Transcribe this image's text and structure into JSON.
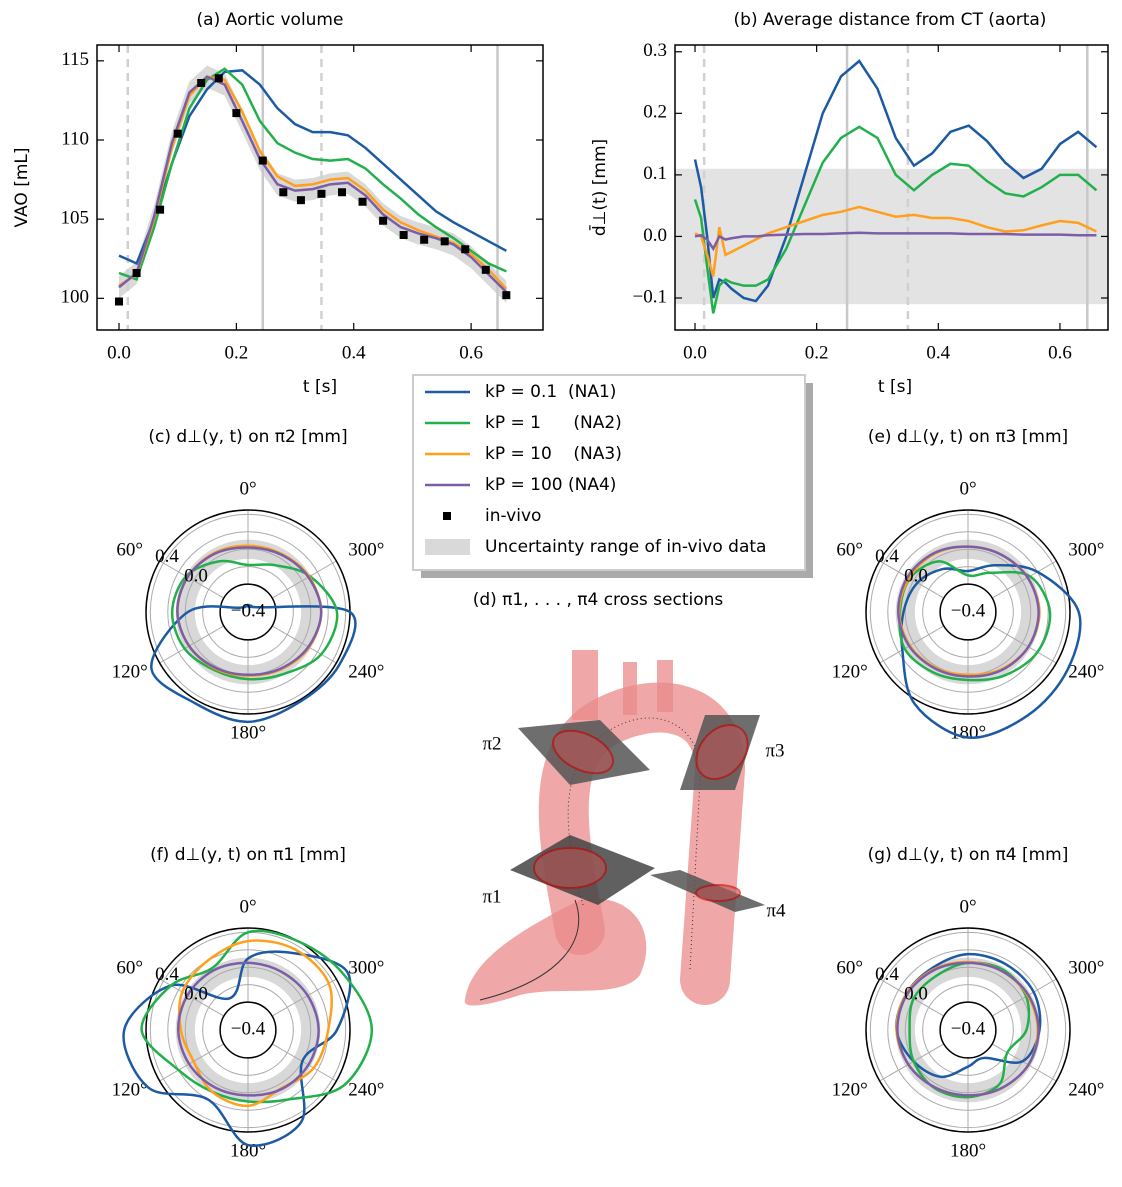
{
  "chart_data": [
    {
      "type": "line",
      "title": "(a) Aortic volume",
      "xlabel": "t [s]",
      "ylabel": "VAO [mL]",
      "xlim": [
        -0.0375,
        0.7225
      ],
      "ylim": [
        98,
        116
      ],
      "xticks": [
        {
          "value": 0,
          "label": "0.0"
        },
        0.2,
        0.4,
        0.6
      ],
      "yticks": [
        100,
        105,
        110,
        115
      ],
      "vlines": [
        {
          "x": 0.015,
          "style": "dashed"
        },
        {
          "x": 0.245,
          "style": "solid"
        },
        {
          "x": 0.345,
          "style": "dashed"
        },
        {
          "x": 0.645,
          "style": "solid"
        }
      ],
      "x": [
        0,
        0.03,
        0.06,
        0.09,
        0.12,
        0.15,
        0.18,
        0.21,
        0.24,
        0.27,
        0.3,
        0.33,
        0.36,
        0.39,
        0.42,
        0.45,
        0.48,
        0.51,
        0.54,
        0.57,
        0.6,
        0.63,
        0.66
      ],
      "series": [
        {
          "name": "kP = 0.1  (NA1)",
          "color": "#1c5ba3",
          "values": [
            102.7,
            102.2,
            105,
            108.5,
            111.5,
            113.2,
            114.3,
            114.4,
            113.5,
            112,
            111,
            110.5,
            110.5,
            110.3,
            109.5,
            108.5,
            107.5,
            106.5,
            105.5,
            104.8,
            104.2,
            103.6,
            103.0
          ]
        },
        {
          "name": "kP = 1      (NA2)",
          "color": "#21b04b",
          "values": [
            101.6,
            101.2,
            104.5,
            108.5,
            112,
            113.8,
            114.5,
            113.5,
            111.2,
            109.8,
            109.2,
            108.8,
            108.7,
            108.8,
            108.2,
            107.2,
            106.3,
            105.3,
            104.5,
            103.8,
            103.0,
            102.2,
            101.7
          ]
        },
        {
          "name": "kP = 10    (NA3)",
          "color": "#ff9f1c",
          "values": [
            100.8,
            101.5,
            105,
            109.5,
            112.8,
            114,
            113.8,
            111.8,
            109.3,
            107.7,
            107.1,
            107.2,
            107.5,
            107.6,
            106.8,
            105.6,
            104.8,
            104.3,
            103.9,
            103.5,
            102.8,
            101.8,
            100.6
          ]
        },
        {
          "name": "kP = 100 (NA4)",
          "color": "#7b5ea7",
          "values": [
            100.7,
            101.6,
            105.2,
            109.8,
            113,
            114,
            113.5,
            111.2,
            108.8,
            107.2,
            106.8,
            106.9,
            107.2,
            107.3,
            106.5,
            105.3,
            104.5,
            104.1,
            103.8,
            103.4,
            102.6,
            101.5,
            100.4
          ]
        }
      ],
      "band": {
        "name": "Uncertainty range of in-vivo data",
        "color": "#d9d9d9",
        "low": [
          100.0,
          100.9,
          104.5,
          109.1,
          112.3,
          113.3,
          112.8,
          110.5,
          108.1,
          106.5,
          106.1,
          106.2,
          106.5,
          106.6,
          105.8,
          104.6,
          103.8,
          103.4,
          103.1,
          102.7,
          101.9,
          100.8,
          99.7
        ],
        "high": [
          101.4,
          102.3,
          105.9,
          110.5,
          113.7,
          114.7,
          114.2,
          111.9,
          109.5,
          107.9,
          107.5,
          107.6,
          107.9,
          108.0,
          107.2,
          106.0,
          105.2,
          104.8,
          104.5,
          104.1,
          103.3,
          102.2,
          101.1
        ]
      },
      "scatter": {
        "name": "in-vivo",
        "color": "#000000",
        "x": [
          0,
          0.03,
          0.07,
          0.1,
          0.14,
          0.17,
          0.2,
          0.245,
          0.28,
          0.31,
          0.345,
          0.38,
          0.415,
          0.45,
          0.485,
          0.52,
          0.555,
          0.59,
          0.625,
          0.66
        ],
        "values": [
          99.8,
          101.6,
          105.6,
          110.4,
          113.6,
          113.9,
          111.7,
          108.7,
          106.7,
          106.2,
          106.6,
          106.7,
          106.1,
          104.9,
          104.0,
          103.7,
          103.6,
          103.1,
          101.8,
          100.2
        ]
      }
    },
    {
      "type": "line",
      "title": "(b) Average distance from CT (aorta)",
      "xlabel": "t [s]",
      "ylabel": "d̄⊥(t) [mm]",
      "xlim": [
        -0.0329,
        0.679
      ],
      "ylim": [
        -0.152,
        0.311
      ],
      "xticks": [
        {
          "value": 0,
          "label": "0.0"
        },
        0.2,
        0.4,
        0.6
      ],
      "yticks": [
        {
          "value": -0.1,
          "label": "−0.1"
        },
        {
          "value": 0,
          "label": "0.0"
        },
        0.1,
        0.2,
        0.3
      ],
      "vlines": [
        {
          "x": 0.015,
          "style": "dashed"
        },
        {
          "x": 0.25,
          "style": "solid"
        },
        {
          "x": 0.35,
          "style": "dashed"
        },
        {
          "x": 0.645,
          "style": "solid"
        }
      ],
      "hband": [
        -0.11,
        0.11
      ],
      "hband_color": "#e3e3e3",
      "x": [
        0,
        0.01,
        0.02,
        0.03,
        0.04,
        0.05,
        0.06,
        0.08,
        0.1,
        0.12,
        0.15,
        0.18,
        0.21,
        0.24,
        0.27,
        0.3,
        0.33,
        0.36,
        0.39,
        0.42,
        0.45,
        0.48,
        0.51,
        0.54,
        0.57,
        0.6,
        0.63,
        0.66
      ],
      "series": [
        {
          "color": "#1c5ba3",
          "values": [
            0.125,
            0.08,
            0.0,
            -0.1,
            -0.07,
            -0.075,
            -0.085,
            -0.1,
            -0.105,
            -0.08,
            0.0,
            0.1,
            0.2,
            0.26,
            0.285,
            0.24,
            0.16,
            0.115,
            0.135,
            0.17,
            0.18,
            0.155,
            0.12,
            0.095,
            0.11,
            0.15,
            0.17,
            0.145
          ]
        },
        {
          "color": "#21b04b",
          "values": [
            0.06,
            0.03,
            -0.05,
            -0.125,
            -0.08,
            -0.07,
            -0.075,
            -0.08,
            -0.08,
            -0.07,
            -0.02,
            0.05,
            0.12,
            0.16,
            0.178,
            0.16,
            0.1,
            0.075,
            0.1,
            0.118,
            0.115,
            0.09,
            0.07,
            0.065,
            0.08,
            0.1,
            0.1,
            0.075
          ]
        },
        {
          "color": "#ff9f1c",
          "values": [
            0.005,
            0,
            -0.03,
            -0.065,
            0.015,
            -0.03,
            -0.025,
            -0.015,
            -0.005,
            0.005,
            0.015,
            0.025,
            0.035,
            0.04,
            0.048,
            0.04,
            0.032,
            0.035,
            0.03,
            0.03,
            0.025,
            0.015,
            0.008,
            0.01,
            0.018,
            0.025,
            0.022,
            0.008
          ]
        },
        {
          "color": "#7b5ea7",
          "values": [
            0,
            0.002,
            -0.005,
            -0.02,
            0,
            -0.005,
            -0.003,
            0,
            0,
            0.002,
            0.003,
            0.004,
            0.004,
            0.005,
            0.006,
            0.005,
            0.005,
            0.005,
            0.005,
            0.005,
            0.004,
            0.004,
            0.004,
            0.003,
            0.003,
            0.003,
            0.002,
            0.002
          ]
        }
      ]
    },
    {
      "type": "polar",
      "title": "(c)  d⊥(y, t) on π2 [mm]",
      "rlim": [
        -0.4,
        0.45
      ],
      "rorigin": -0.72,
      "rticks": [
        {
          "value": -0.4,
          "label": "−0.4"
        },
        {
          "value": 0,
          "label": "0.0"
        },
        0.4
      ],
      "rgrid": [
        -0.2,
        0.2
      ],
      "band": [
        -0.11,
        0.11
      ],
      "thetaticks": [
        {
          "value": 0,
          "label": "0°"
        },
        {
          "value": 60,
          "label": "60°"
        },
        {
          "value": 120,
          "label": "120°"
        },
        {
          "value": 180,
          "label": "180°"
        },
        {
          "value": 240,
          "label": "240°"
        },
        {
          "value": 300,
          "label": "300°"
        }
      ],
      "theta": [
        0,
        30,
        60,
        90,
        120,
        150,
        180,
        210,
        240,
        270,
        300,
        330
      ],
      "series": [
        {
          "color": "#1c5ba3",
          "values": [
            -0.64,
            -0.64,
            -0.62,
            -0.03,
            0.56,
            0.49,
            0.54,
            0.47,
            0.49,
            0.45,
            -0.61,
            -0.64
          ]
        },
        {
          "color": "#21b04b",
          "values": [
            -0.18,
            -0.05,
            0.1,
            0.15,
            0.12,
            0.05,
            0.05,
            0.1,
            0.25,
            0.3,
            0.1,
            -0.1
          ]
        },
        {
          "color": "#ff9f1c",
          "values": [
            0.04,
            0.06,
            0.08,
            0.09,
            0.06,
            0.03,
            0.01,
            0.04,
            0.09,
            0.12,
            0.09,
            0.05
          ]
        },
        {
          "color": "#7b5ea7",
          "values": [
            0.02,
            0.05,
            0.08,
            0.09,
            0.06,
            0.02,
            0.0,
            0.03,
            0.08,
            0.12,
            0.08,
            0.04
          ]
        }
      ]
    },
    {
      "type": "polar",
      "title": "(e)  d⊥(y, t) on π3 [mm]",
      "rlim": [
        -0.4,
        0.45
      ],
      "rorigin": -0.72,
      "rticks": [
        {
          "value": -0.4,
          "label": "−0.4"
        },
        {
          "value": 0,
          "label": "0.0"
        },
        0.4
      ],
      "rgrid": [
        -0.2,
        0.2
      ],
      "band": [
        -0.11,
        0.11
      ],
      "thetaticks": [
        {
          "value": 0,
          "label": "0°"
        },
        {
          "value": 60,
          "label": "60°"
        },
        {
          "value": 120,
          "label": "120°"
        },
        {
          "value": 180,
          "label": "180°"
        },
        {
          "value": 240,
          "label": "240°"
        },
        {
          "value": 300,
          "label": "300°"
        }
      ],
      "theta": [
        0,
        30,
        60,
        90,
        120,
        150,
        180,
        210,
        240,
        270,
        300,
        330
      ],
      "series": [
        {
          "color": "#1c5ba3",
          "values": [
            -0.25,
            -0.15,
            -0.05,
            0.02,
            0.15,
            0.5,
            0.72,
            0.65,
            0.6,
            0.55,
            0.2,
            -0.1
          ]
        },
        {
          "color": "#21b04b",
          "values": [
            -0.3,
            -0.05,
            0.05,
            0.06,
            0.12,
            0.08,
            0.06,
            0.12,
            0.2,
            0.22,
            0.1,
            -0.2
          ]
        },
        {
          "color": "#ff9f1c",
          "values": [
            0.03,
            0.05,
            0.06,
            0.07,
            0.05,
            0.02,
            0.0,
            0.04,
            0.08,
            0.1,
            0.07,
            0.04
          ]
        },
        {
          "color": "#7b5ea7",
          "values": [
            0.03,
            0.06,
            0.08,
            0.08,
            0.06,
            0.03,
            0.02,
            0.05,
            0.08,
            0.09,
            0.07,
            0.04
          ]
        }
      ]
    },
    {
      "type": "polar",
      "title": "(f)  d⊥(y, t) on π1 [mm]",
      "rlim": [
        -0.4,
        0.45
      ],
      "rorigin": -0.72,
      "rticks": [
        {
          "value": -0.4,
          "label": "−0.4"
        },
        {
          "value": 0,
          "label": "0.0"
        },
        0.4
      ],
      "rgrid": [
        -0.2,
        0.2
      ],
      "band": [
        -0.11,
        0.11
      ],
      "thetaticks": [
        {
          "value": 0,
          "label": "0°"
        },
        {
          "value": 60,
          "label": "60°"
        },
        {
          "value": 120,
          "label": "120°"
        },
        {
          "value": 180,
          "label": "180°"
        },
        {
          "value": 240,
          "label": "240°"
        },
        {
          "value": 300,
          "label": "300°"
        }
      ],
      "theta": [
        0,
        30,
        60,
        90,
        120,
        150,
        180,
        210,
        240,
        270,
        300,
        330
      ],
      "series": [
        {
          "color": "#1c5ba3",
          "values": [
            0.1,
            -0.3,
            0.3,
            0.7,
            0.6,
            0.2,
            0.6,
            0.5,
            0.0,
            0.3,
            0.6,
            0.3
          ]
        },
        {
          "color": "#21b04b",
          "values": [
            0.4,
            0.1,
            0.3,
            0.5,
            0.2,
            0.1,
            0.1,
            0.2,
            0.55,
            0.7,
            0.55,
            0.45
          ]
        },
        {
          "color": "#ff9f1c",
          "values": [
            0.3,
            0.2,
            0.15,
            0.05,
            0.0,
            0.1,
            0.15,
            0.05,
            0.15,
            0.2,
            0.35,
            0.35
          ]
        },
        {
          "color": "#7b5ea7",
          "values": [
            0.05,
            0.07,
            0.08,
            0.08,
            0.06,
            0.04,
            0.03,
            0.06,
            0.08,
            0.09,
            0.07,
            0.05
          ]
        }
      ]
    },
    {
      "type": "polar",
      "title": "(g)  d⊥(y, t) on π4 [mm]",
      "rlim": [
        -0.4,
        0.45
      ],
      "rorigin": -0.72,
      "rticks": [
        {
          "value": -0.4,
          "label": "−0.4"
        },
        {
          "value": 0,
          "label": "0.0"
        },
        0.4
      ],
      "rgrid": [
        -0.2,
        0.2
      ],
      "band": [
        -0.11,
        0.11
      ],
      "thetaticks": [
        {
          "value": 0,
          "label": "0°"
        },
        {
          "value": 60,
          "label": "60°"
        },
        {
          "value": 120,
          "label": "120°"
        },
        {
          "value": 180,
          "label": "180°"
        },
        {
          "value": 240,
          "label": "240°"
        },
        {
          "value": 300,
          "label": "300°"
        }
      ],
      "theta": [
        0,
        30,
        60,
        90,
        120,
        150,
        180,
        210,
        240,
        270,
        300,
        330
      ],
      "series": [
        {
          "color": "#1c5ba3",
          "values": [
            0.15,
            0.1,
            0.1,
            0.1,
            0.0,
            -0.1,
            -0.3,
            -0.35,
            0.0,
            0.1,
            0.15,
            0.15
          ]
        },
        {
          "color": "#21b04b",
          "values": [
            0.05,
            0.0,
            0.0,
            -0.05,
            0.0,
            0.05,
            0.05,
            0.0,
            -0.2,
            -0.05,
            0.05,
            0.08
          ]
        },
        {
          "color": "#ff9f1c",
          "values": [
            0.06,
            0.08,
            0.1,
            0.1,
            0.07,
            0.04,
            0.03,
            0.05,
            0.08,
            0.08,
            0.07,
            0.06
          ]
        },
        {
          "color": "#7b5ea7",
          "values": [
            0.05,
            0.07,
            0.09,
            0.09,
            0.07,
            0.04,
            0.03,
            0.05,
            0.08,
            0.09,
            0.08,
            0.06
          ]
        }
      ]
    }
  ],
  "diagram": {
    "title": "(d) π1, . . . , π4 cross sections",
    "labels": [
      "π2",
      "π3",
      "π1",
      "π4"
    ]
  }
}
